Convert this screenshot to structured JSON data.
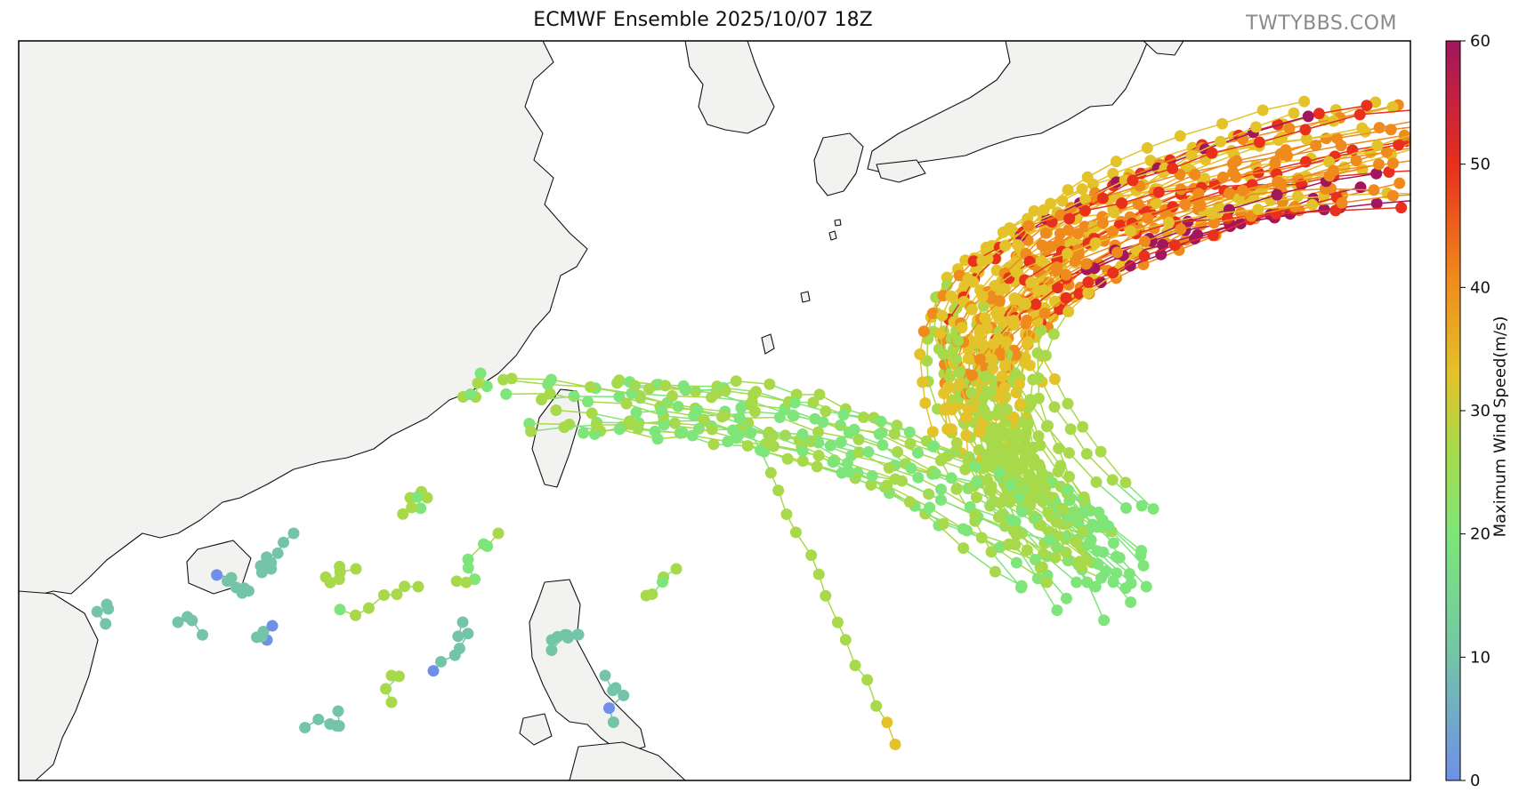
{
  "header": {
    "title": "ECMWF Ensemble 2025/10/07 18Z",
    "watermark": "TWTYBBS.COM"
  },
  "colorbar": {
    "label": "Maximum Wind Speed(m/s)",
    "ticks": [
      "0",
      "10",
      "20",
      "30",
      "40",
      "50",
      "60"
    ],
    "colors": [
      "#6f8fe8",
      "#74c5a8",
      "#7de57a",
      "#a8d94a",
      "#e3c22a",
      "#ef8a1c",
      "#e8301c",
      "#a2165e"
    ]
  },
  "map": {
    "land_color": "#f2f2f0",
    "sea_color": "#ffffff",
    "coast_color": "#000000"
  }
}
